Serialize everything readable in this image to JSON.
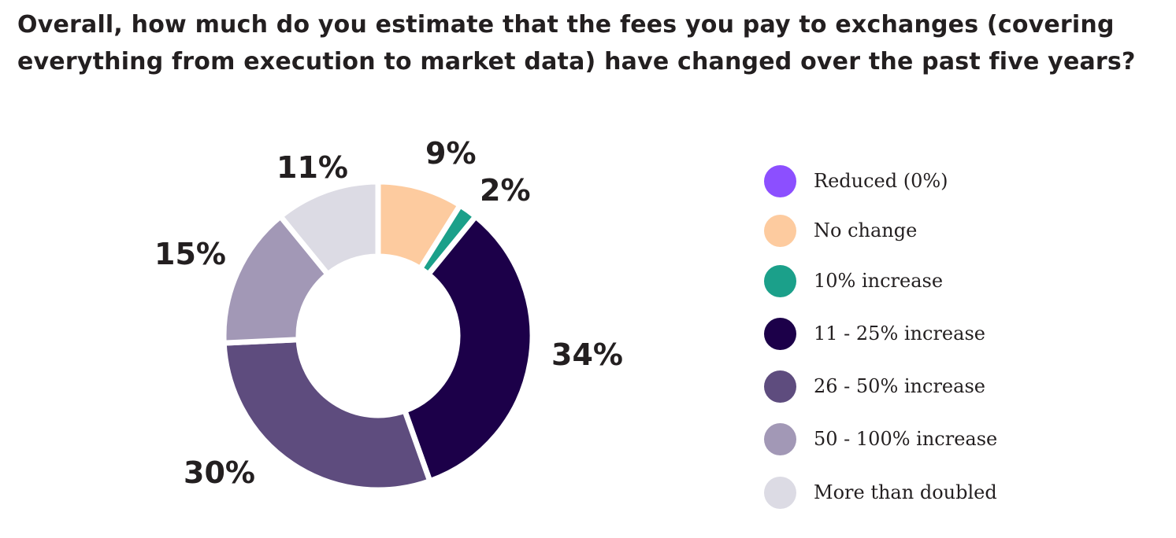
{
  "title": {
    "line1": "Overall, how much do you estimate that the fees you pay to exchanges (covering",
    "line2": "everything from execution to market data) have changed over the past five years?"
  },
  "chart_data": {
    "type": "pie",
    "subtype": "donut",
    "title": "Overall, how much do you estimate that the fees you pay to exchanges (covering everything from execution to market data) have changed over the past five years?",
    "categories": [
      "Reduced (0%)",
      "No change",
      "10% increase",
      "11 - 25% increase",
      "26 - 50% increase",
      "50 - 100% increase",
      "More than doubled"
    ],
    "values": [
      0,
      9,
      2,
      34,
      30,
      15,
      11
    ],
    "labels": [
      "",
      "9%",
      "2%",
      "34%",
      "30%",
      "15%",
      "11%"
    ],
    "colors": [
      "#8c4fff",
      "#fdcb9f",
      "#1ba08a",
      "#1c0049",
      "#5e4c7e",
      "#a298b6",
      "#dcdbe4"
    ],
    "unit": "%",
    "legend_position": "right"
  },
  "legend": {
    "items": [
      {
        "label": "Reduced (0%)",
        "color": "#8c4fff"
      },
      {
        "label": "No change",
        "color": "#fdcb9f"
      },
      {
        "label": "10% increase",
        "color": "#1ba08a"
      },
      {
        "label": "11 - 25% increase",
        "color": "#1c0049"
      },
      {
        "label": "26 - 50% increase",
        "color": "#5e4c7e"
      },
      {
        "label": "50 - 100% increase",
        "color": "#a298b6"
      },
      {
        "label": "More than doubled",
        "color": "#dcdbe4"
      }
    ]
  },
  "slice_labels": {
    "no_change": "9%",
    "ten_pct": "2%",
    "eleven_25": "34%",
    "twentysix_50": "30%",
    "fifty_100": "15%",
    "more_than_doubled": "11%"
  }
}
